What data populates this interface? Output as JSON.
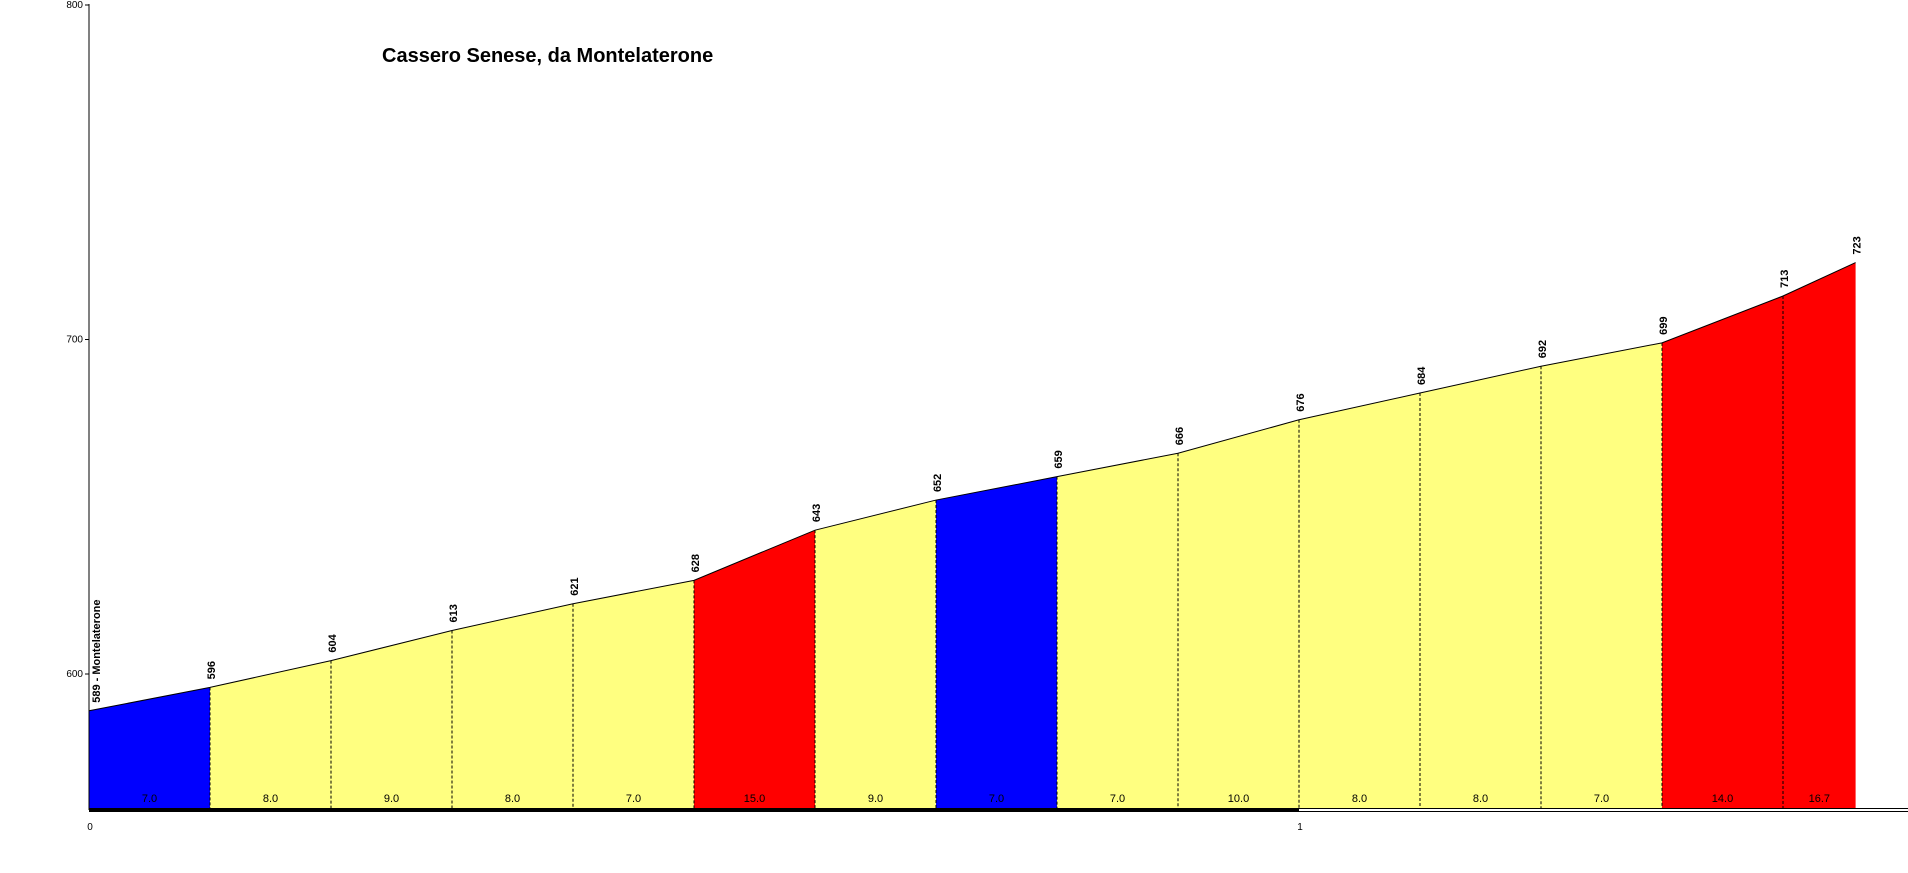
{
  "chart_data": {
    "type": "area",
    "title": "Cassero Senese, da Montelaterone",
    "xlabel": "",
    "ylabel": "",
    "x_unit": "km",
    "xlim": [
      0,
      1.5
    ],
    "ylim": [
      560,
      800
    ],
    "y_ticks": [
      600,
      700,
      800
    ],
    "x_ticks": [
      0,
      1
    ],
    "grid": false,
    "legend": "none",
    "start_label": "Montelaterone",
    "points": [
      {
        "x": 0.0,
        "elev": 589
      },
      {
        "x": 0.1,
        "elev": 596
      },
      {
        "x": 0.2,
        "elev": 604
      },
      {
        "x": 0.3,
        "elev": 613
      },
      {
        "x": 0.4,
        "elev": 621
      },
      {
        "x": 0.5,
        "elev": 628
      },
      {
        "x": 0.6,
        "elev": 643
      },
      {
        "x": 0.7,
        "elev": 652
      },
      {
        "x": 0.8,
        "elev": 659
      },
      {
        "x": 0.9,
        "elev": 666
      },
      {
        "x": 1.0,
        "elev": 676
      },
      {
        "x": 1.1,
        "elev": 684
      },
      {
        "x": 1.2,
        "elev": 692
      },
      {
        "x": 1.3,
        "elev": 699
      },
      {
        "x": 1.4,
        "elev": 713
      },
      {
        "x": 1.46,
        "elev": 723
      }
    ],
    "segments": [
      {
        "gradient": "7.0",
        "color": "#0000ff"
      },
      {
        "gradient": "8.0",
        "color": "#ffff80"
      },
      {
        "gradient": "9.0",
        "color": "#ffff80"
      },
      {
        "gradient": "8.0",
        "color": "#ffff80"
      },
      {
        "gradient": "7.0",
        "color": "#ffff80"
      },
      {
        "gradient": "15.0",
        "color": "#ff0000"
      },
      {
        "gradient": "9.0",
        "color": "#ffff80"
      },
      {
        "gradient": "7.0",
        "color": "#0000ff"
      },
      {
        "gradient": "7.0",
        "color": "#ffff80"
      },
      {
        "gradient": "10.0",
        "color": "#ffff80"
      },
      {
        "gradient": "8.0",
        "color": "#ffff80"
      },
      {
        "gradient": "8.0",
        "color": "#ffff80"
      },
      {
        "gradient": "7.0",
        "color": "#ffff80"
      },
      {
        "gradient": "14.0",
        "color": "#ff0000"
      },
      {
        "gradient": "16.7",
        "color": "#ff0000"
      }
    ]
  }
}
